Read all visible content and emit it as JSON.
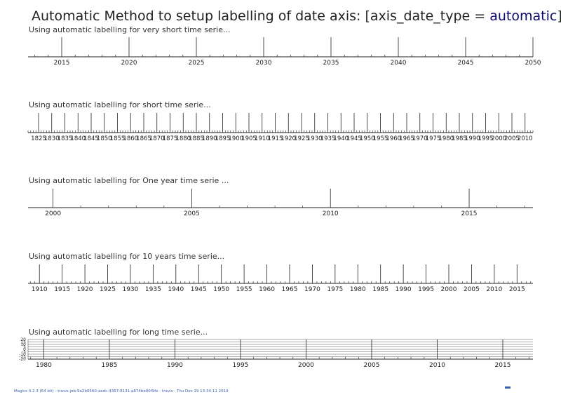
{
  "title": {
    "prefix": "Automatic Method to setup labelling of date axis: [axis_date_type = ",
    "accent": "automatic",
    "suffix": "]",
    "accent_color": "#0a0a6a"
  },
  "footer": "Magics 4.2.3 (64 bit) - travis-job-9a2b0560-aedc-4367-8131-a874be00f9fe - travis - Thu Dec 19 13:34:11 2019",
  "footer_color": "#3a5fb0",
  "chart_data": [
    {
      "type": "date-axis",
      "title": "Using automatic labelling for very short time serie...",
      "xlim": [
        2012.5,
        2050
      ],
      "major": [
        2015,
        2020,
        2025,
        2030,
        2035,
        2040,
        2045,
        2050
      ],
      "minor_step": 1,
      "tick_labels": [
        "2015",
        "2020",
        "2025",
        "2030",
        "2035",
        "2040",
        "2045",
        "2050"
      ]
    },
    {
      "type": "date-axis",
      "title": "Using automatic labelling for short time serie...",
      "xlim": [
        1821,
        2013
      ],
      "major": [
        1825,
        1830,
        1835,
        1840,
        1845,
        1850,
        1855,
        1860,
        1865,
        1870,
        1875,
        1880,
        1885,
        1890,
        1895,
        1900,
        1905,
        1910,
        1915,
        1920,
        1925,
        1930,
        1935,
        1940,
        1945,
        1950,
        1955,
        1960,
        1965,
        1970,
        1975,
        1980,
        1985,
        1990,
        1995,
        2000,
        2005,
        2010
      ],
      "minor_step": 1,
      "tick_labels": [
        "1825",
        "1830",
        "1835",
        "1840",
        "1845",
        "1850",
        "1855",
        "1860",
        "1865",
        "1870",
        "1875",
        "1880",
        "1885",
        "1890",
        "1895",
        "1900",
        "1905",
        "1910",
        "1915",
        "1920",
        "1925",
        "1930",
        "1935",
        "1940",
        "1945",
        "1950",
        "1955",
        "1960",
        "1965",
        "1970",
        "1975",
        "1980",
        "1985",
        "1990",
        "1995",
        "2000",
        "2005",
        "2010"
      ]
    },
    {
      "type": "date-axis",
      "title": "Using automatic labelling for One year time serie ...",
      "xlim": [
        1999.1,
        2017.3
      ],
      "major": [
        2000,
        2005,
        2010,
        2015
      ],
      "minor_step": 1,
      "tick_labels": [
        "2000",
        "2005",
        "2010",
        "2015"
      ]
    },
    {
      "type": "date-axis",
      "title": "Using automatic labelling for 10 years time serie...",
      "xlim": [
        1907.5,
        2018.5
      ],
      "major": [
        1910,
        1915,
        1920,
        1925,
        1930,
        1935,
        1940,
        1945,
        1950,
        1955,
        1960,
        1965,
        1970,
        1975,
        1980,
        1985,
        1990,
        1995,
        2000,
        2005,
        2010,
        2015
      ],
      "minor_step": 1,
      "tick_labels": [
        "1910",
        "1915",
        "1920",
        "1925",
        "1930",
        "1935",
        "1940",
        "1945",
        "1950",
        "1955",
        "1960",
        "1965",
        "1970",
        "1975",
        "1980",
        "1985",
        "1990",
        "1995",
        "2000",
        "2005",
        "2010",
        "2015"
      ]
    },
    {
      "type": "date-axis",
      "title": "Using automatic labelling for long time serie...",
      "xlim": [
        1978.8,
        2017.3
      ],
      "major": [
        1980,
        1985,
        1990,
        1995,
        2000,
        2005,
        2010,
        2015
      ],
      "minor_step": 1,
      "tick_labels": [
        "1980",
        "1985",
        "1990",
        "1995",
        "2000",
        "2005",
        "2010",
        "2015"
      ],
      "y_tick_labels": [
        "20",
        "15",
        "10",
        "5",
        "0",
        "-5",
        "-10",
        "-15",
        "-20"
      ],
      "grid": true
    }
  ]
}
